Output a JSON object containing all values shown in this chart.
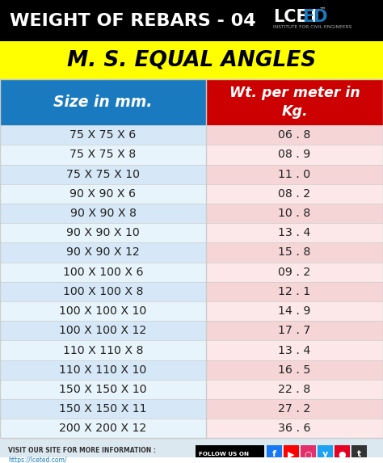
{
  "title": "WEIGHT OF REBARS - 04",
  "subtitle": "M. S. EQUAL ANGLES",
  "col1_header": "Size in mm.",
  "col2_header": "Wt. per meter in\nKg.",
  "rows": [
    [
      "75 X 75 X 6",
      "06 . 8"
    ],
    [
      "75 X 75 X 8",
      "08 . 9"
    ],
    [
      "75 X 75 X 10",
      "11 . 0"
    ],
    [
      "90 X 90 X 6",
      "08 . 2"
    ],
    [
      "90 X 90 X 8",
      "10 . 8"
    ],
    [
      "90 X 90 X 10",
      "13 . 4"
    ],
    [
      "90 X 90 X 12",
      "15 . 8"
    ],
    [
      "100 X 100 X 6",
      "09 . 2"
    ],
    [
      "100 X 100 X 8",
      "12 . 1"
    ],
    [
      "100 X 100 X 10",
      "14 . 9"
    ],
    [
      "100 X 100 X 12",
      "17 . 7"
    ],
    [
      "110 X 110 X 8",
      "13 . 4"
    ],
    [
      "110 X 110 X 10",
      "16 . 5"
    ],
    [
      "150 X 150 X 10",
      "22 . 8"
    ],
    [
      "150 X 150 X 11",
      "27 . 2"
    ],
    [
      "200 X 200 X 12",
      "36 . 6"
    ]
  ],
  "header_bg_col1": "#1a7abf",
  "header_bg_col2": "#cc0000",
  "header_text_color": "#ffffff",
  "title_bg": "#000000",
  "title_text_color": "#ffffff",
  "subtitle_bg": "#ffff00",
  "subtitle_text_color": "#000000",
  "row_bg_col1_even": "#d6e8f7",
  "row_bg_col1_odd": "#e8f4fb",
  "row_bg_col2_even": "#f5d5d5",
  "row_bg_col2_odd": "#fce8e8",
  "row_text_color": "#222222",
  "lceted_sub_text": "INSTITUTE FOR CIVIL ENGINEERS",
  "border_color": "#cccccc",
  "footer_bg": "#dce8f0",
  "icon_colors": [
    "#1877f2",
    "#ff0000",
    "#e1306c",
    "#1da1f2",
    "#e60023",
    "#333333"
  ],
  "icon_labels": [
    "f",
    "▶",
    "○",
    "y",
    "●",
    "t"
  ]
}
